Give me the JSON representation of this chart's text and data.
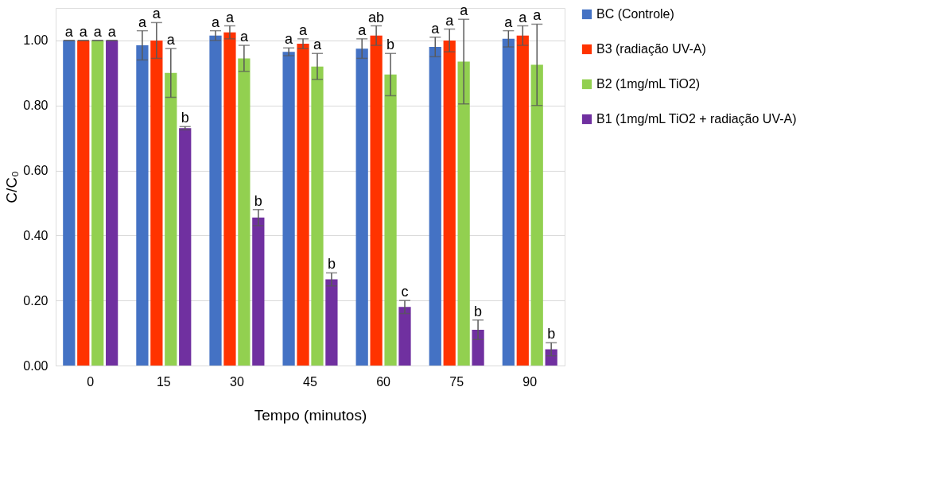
{
  "chart_data": {
    "type": "bar",
    "xlabel": "Tempo (minutos)",
    "ylabel": "C/C₀",
    "categories": [
      "0",
      "15",
      "30",
      "45",
      "60",
      "75",
      "90"
    ],
    "series": [
      {
        "name": "BC (Controle)",
        "color": "#4472c4",
        "values": [
          1.0,
          0.985,
          1.015,
          0.965,
          0.975,
          0.98,
          1.005
        ],
        "errors": [
          0,
          0.045,
          0.015,
          0.012,
          0.03,
          0.03,
          0.025
        ],
        "value_labels": [
          "a",
          "a",
          "a",
          "a",
          "a",
          "a",
          "a"
        ]
      },
      {
        "name": "B3 (radiação UV-A)",
        "color": "#ff3300",
        "values": [
          1.0,
          1.0,
          1.025,
          0.99,
          1.015,
          1.0,
          1.015
        ],
        "errors": [
          0,
          0.055,
          0.02,
          0.015,
          0.03,
          0.035,
          0.03
        ],
        "value_labels": [
          "a",
          "a",
          "a",
          "a",
          "ab",
          "a",
          "a"
        ]
      },
      {
        "name": "B2 (1mg/mL TiO2)",
        "color": "#92d050",
        "values": [
          1.0,
          0.9,
          0.945,
          0.92,
          0.895,
          0.935,
          0.925
        ],
        "errors": [
          0,
          0.075,
          0.04,
          0.04,
          0.065,
          0.13,
          0.125
        ],
        "value_labels": [
          "a",
          "a",
          "a",
          "a",
          "b",
          "a",
          "a"
        ]
      },
      {
        "name": "B1 (1mg/mL TiO2 + radiação UV-A)",
        "color": "#7030a0",
        "values": [
          1.0,
          0.73,
          0.455,
          0.265,
          0.18,
          0.11,
          0.05
        ],
        "errors": [
          0,
          0.005,
          0.025,
          0.02,
          0.02,
          0.03,
          0.02
        ],
        "value_labels": [
          "a",
          "b",
          "b",
          "b",
          "c",
          "b",
          "b"
        ]
      }
    ],
    "ylim": [
      0,
      1.1
    ],
    "yticks": [
      {
        "value": 0,
        "label": "0.00"
      },
      {
        "value": 0.2,
        "label": "0.20"
      },
      {
        "value": 0.4,
        "label": "0.40"
      },
      {
        "value": 0.6,
        "label": "0.60"
      },
      {
        "value": 0.8,
        "label": "0.80"
      },
      {
        "value": 1.0,
        "label": "1.00"
      }
    ],
    "grid": "y",
    "legend": "right"
  }
}
